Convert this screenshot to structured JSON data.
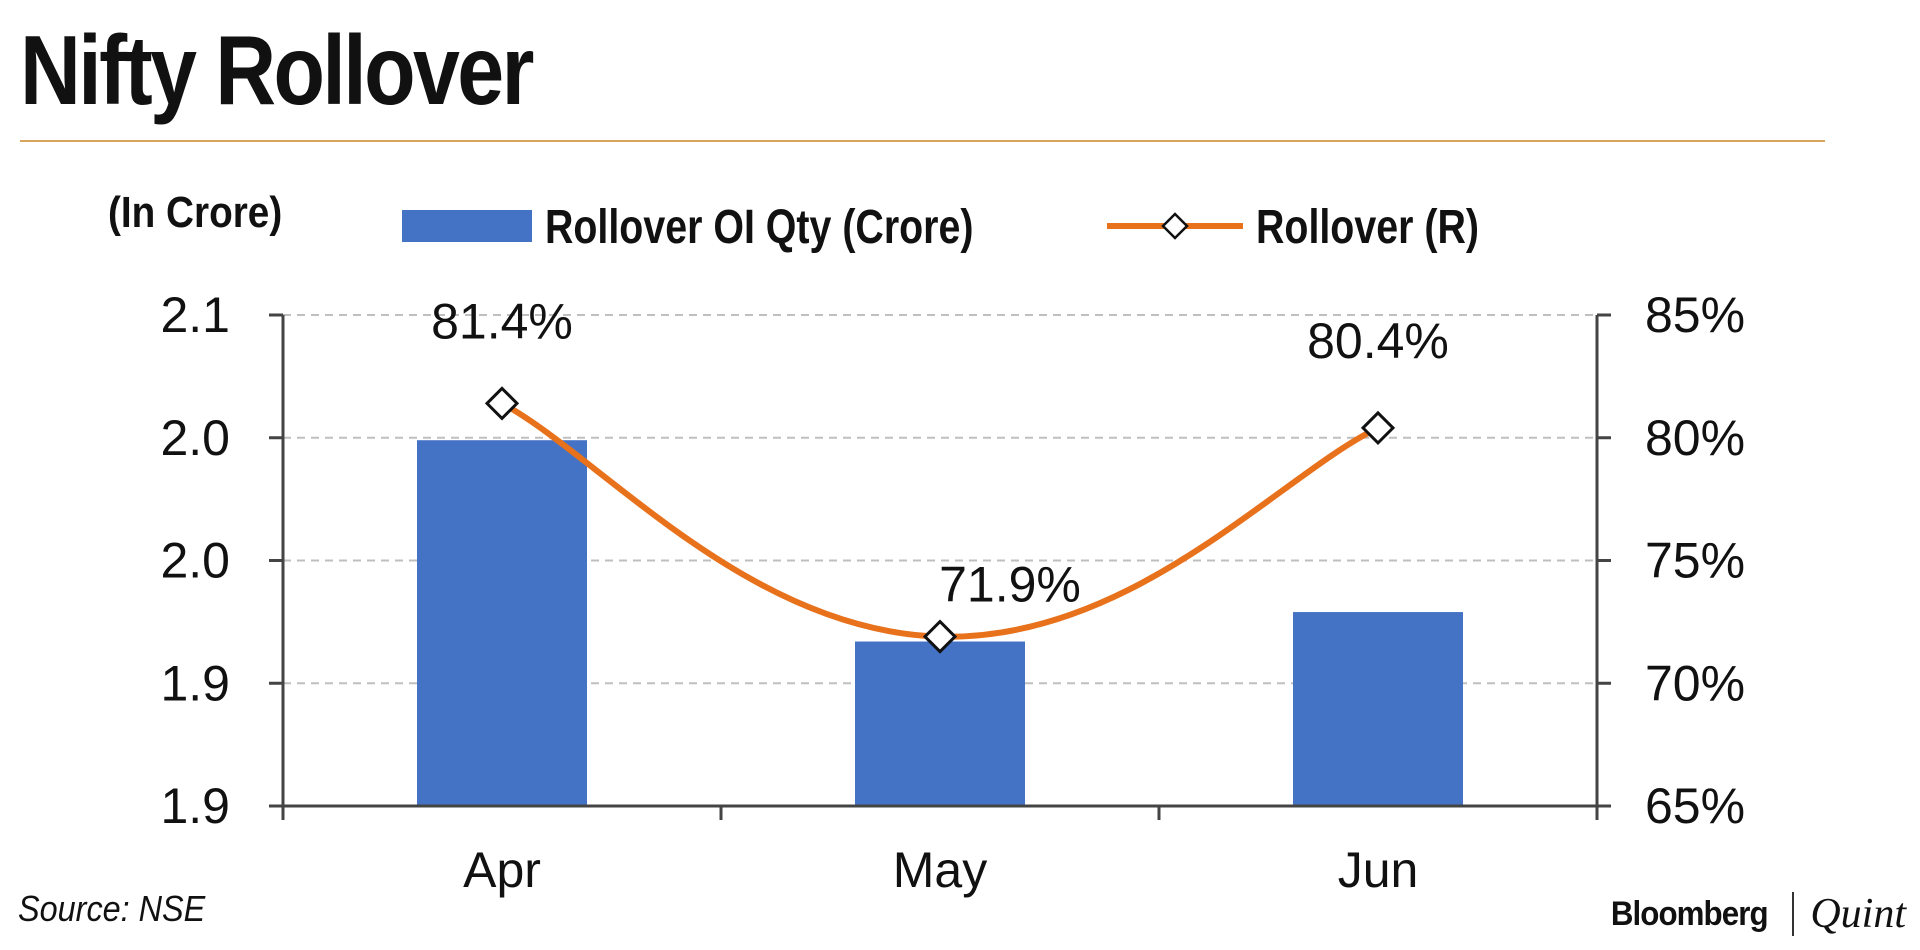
{
  "title": "Nifty Rollover",
  "source": "Source: NSE",
  "brand": {
    "primary": "Bloomberg",
    "secondary": "Quint"
  },
  "colors": {
    "bar": "#4472c4",
    "line": "#e8711c",
    "grid": "#bfbfbf",
    "axis": "#444444",
    "rule": "#d9a55a"
  },
  "chart_data": {
    "type": "bar",
    "categories": [
      "Apr",
      "May",
      "Jun"
    ],
    "left_axis": {
      "label": "(In Crore)",
      "ticks": [
        "1.9",
        "1.9",
        "2.0",
        "2.0",
        "2.1"
      ],
      "ylim": [
        1.88,
        2.08
      ]
    },
    "right_axis": {
      "ticks": [
        "65%",
        "70%",
        "75%",
        "80%",
        "85%"
      ],
      "ylim": [
        65,
        85
      ]
    },
    "series": [
      {
        "name": "Rollover OI Qty (Crore)",
        "type": "bar",
        "axis": "left",
        "values": [
          2.029,
          1.947,
          1.959
        ]
      },
      {
        "name": "Rollover (R)",
        "type": "line",
        "axis": "right",
        "marker": "diamond",
        "values": [
          81.4,
          71.9,
          80.4
        ],
        "labels": [
          "81.4%",
          "71.9%",
          "80.4%"
        ]
      }
    ],
    "grid": true,
    "legend": "top"
  }
}
